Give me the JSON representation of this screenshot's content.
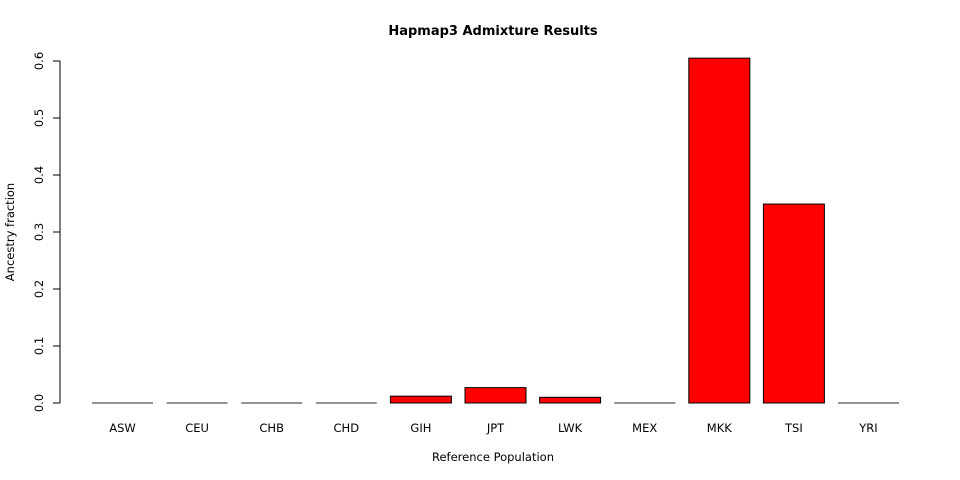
{
  "chart_data": {
    "type": "bar",
    "title": "Hapmap3 Admixture Results",
    "xlabel": "Reference Population",
    "ylabel": "Ancestry fraction",
    "categories": [
      "ASW",
      "CEU",
      "CHB",
      "CHD",
      "GIH",
      "JPT",
      "LWK",
      "MEX",
      "MKK",
      "TSI",
      "YRI"
    ],
    "values": [
      0.0,
      0.0,
      0.0,
      0.0,
      0.012,
      0.027,
      0.01,
      0.0,
      0.605,
      0.349,
      0.0
    ],
    "ylim": [
      0,
      0.6
    ],
    "yticks": [
      "0.0",
      "0.1",
      "0.2",
      "0.3",
      "0.4",
      "0.5",
      "0.6"
    ],
    "bar_color": "#ff0000",
    "grid": false,
    "legend": "none"
  }
}
